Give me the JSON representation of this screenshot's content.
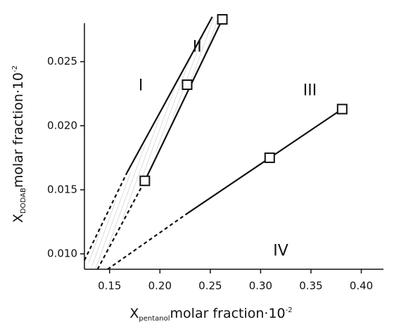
{
  "chart_data": {
    "type": "phase-diagram",
    "x_label": {
      "main": "X",
      "sub": "pentanol",
      "rest": "molar fraction·10",
      "sup": "-2"
    },
    "y_label": {
      "main": "X",
      "sub": "DODAB",
      "rest": "molar fraction·10",
      "sup": "-2"
    },
    "xlim": [
      0.125,
      0.422
    ],
    "ylim": [
      0.0088,
      0.028
    ],
    "xticks": [
      {
        "value": 0.15,
        "label": "0.15"
      },
      {
        "value": 0.2,
        "label": "0.20"
      },
      {
        "value": 0.25,
        "label": "0.25"
      },
      {
        "value": 0.3,
        "label": "0.30"
      },
      {
        "value": 0.35,
        "label": "0.35"
      },
      {
        "value": 0.4,
        "label": "0.40"
      }
    ],
    "yticks": [
      {
        "value": 0.01,
        "label": "0.010"
      },
      {
        "value": 0.015,
        "label": "0.015"
      },
      {
        "value": 0.02,
        "label": "0.020"
      },
      {
        "value": 0.025,
        "label": "0.025"
      }
    ],
    "color": "#111111",
    "boundaries": [
      {
        "solid": {
          "x": [
            0.167,
            0.252
          ],
          "y": [
            0.0163,
            0.0285
          ]
        },
        "dashed": {
          "x": [
            0.125,
            0.167
          ],
          "y": [
            0.0095,
            0.0163
          ]
        }
      },
      {
        "solid": {
          "x": [
            0.185,
            0.262
          ],
          "y": [
            0.0157,
            0.0283
          ]
        },
        "dashed": {
          "x": [
            0.138,
            0.185
          ],
          "y": [
            0.0088,
            0.0157
          ]
        }
      },
      {
        "solid": {
          "x": [
            0.228,
            0.381
          ],
          "y": [
            0.0132,
            0.0213
          ]
        },
        "dashed": {
          "x": [
            0.148,
            0.228
          ],
          "y": [
            0.0088,
            0.0132
          ]
        }
      }
    ],
    "series": [
      {
        "x": [
          0.185,
          0.227,
          0.262
        ],
        "values": [
          0.0157,
          0.0232,
          0.0283
        ]
      },
      {
        "x": [
          0.309,
          0.381
        ],
        "values": [
          0.0175,
          0.0213
        ]
      }
    ],
    "annotations": [
      {
        "text": "I",
        "x": 0.181,
        "y": 0.0231
      },
      {
        "text": "II",
        "x": 0.237,
        "y": 0.0261
      },
      {
        "text": "III",
        "x": 0.349,
        "y": 0.0227
      },
      {
        "text": "IV",
        "x": 0.32,
        "y": 0.0102
      }
    ]
  }
}
